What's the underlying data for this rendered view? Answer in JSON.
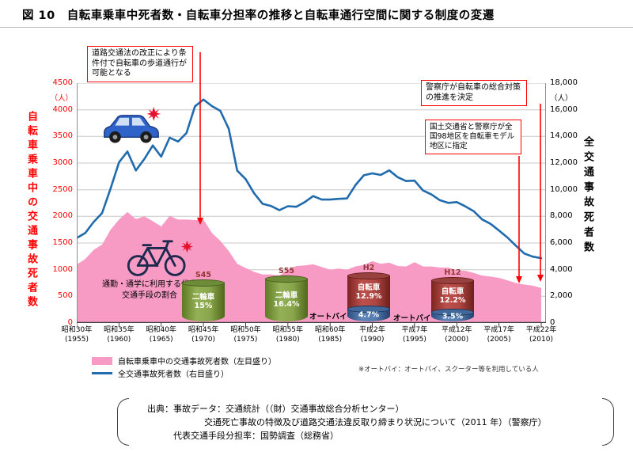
{
  "title": "図 10　自転車乗車中死者数・自転車分担率の推移と自転車通行空間に関する制度の変遷",
  "left_axis": {
    "title": "自転車乗車中の交通事故死者数",
    "unit": "（人）",
    "ticks": [
      "4500",
      "4000",
      "3500",
      "3000",
      "2500",
      "2000",
      "1500",
      "1000",
      "500",
      "0"
    ]
  },
  "right_axis": {
    "title": "全交通事故死者数",
    "unit": "（人）",
    "ticks": [
      "18,000",
      "16,000",
      "14,000",
      "12,000",
      "10,000",
      "8,000",
      "6,000",
      "4,000",
      "2,000",
      "0"
    ]
  },
  "x_axis": {
    "labels": [
      {
        "era": "昭和30年",
        "year": "(1955)"
      },
      {
        "era": "昭和35年",
        "year": "(1960)"
      },
      {
        "era": "昭和40年",
        "year": "(1965)"
      },
      {
        "era": "昭和45年",
        "year": "(1970)"
      },
      {
        "era": "昭和50年",
        "year": "(1975)"
      },
      {
        "era": "昭和55年",
        "year": "(1980)"
      },
      {
        "era": "昭和60年",
        "year": "(1985)"
      },
      {
        "era": "平成2年",
        "year": "(1990)"
      },
      {
        "era": "平成7年",
        "year": "(1995)"
      },
      {
        "era": "平成12年",
        "year": "(2000)"
      },
      {
        "era": "平成17年",
        "year": "(2005)"
      },
      {
        "era": "平成22年",
        "year": "(2010)"
      }
    ]
  },
  "annotations": [
    {
      "text": "道路交通法の改正により条件付で自転車の歩道通行が可能となる"
    },
    {
      "text": "警察庁が自転車の総合対策の推進を決定"
    },
    {
      "text": "国土交通省と警察庁が全国98地区を自転車モデル地区に指定"
    }
  ],
  "area_label": "通勤・通学に利用する代表交通手段の割合",
  "cylinders": [
    {
      "label": "S45",
      "segments": [
        {
          "name": "二輪車",
          "value": "15%",
          "color": "green"
        }
      ]
    },
    {
      "label": "S55",
      "segments": [
        {
          "name": "二輪車",
          "value": "16.4%",
          "color": "green"
        }
      ]
    },
    {
      "label": "H2",
      "side_label": "オートバイ",
      "segments": [
        {
          "name": "自転車",
          "value": "12.9%",
          "color": "red"
        },
        {
          "name": "",
          "value": "4.7%",
          "color": "blue"
        }
      ]
    },
    {
      "label": "H12",
      "side_label": "オートバイ",
      "segments": [
        {
          "name": "自転車",
          "value": "12.2%",
          "color": "red"
        },
        {
          "name": "",
          "value": "3.5%",
          "color": "blue"
        }
      ]
    }
  ],
  "legend": {
    "items": [
      {
        "type": "area",
        "label": "自転車乗車中の交通事故死者数（左目盛り）"
      },
      {
        "type": "line",
        "label": "全交通事故死者数（右目盛り）"
      }
    ]
  },
  "note": "※オートバイ：オートバイ、スクーター等を利用している人",
  "source": {
    "lines": [
      "出典：事故データ：交通統計（（財）交通事故総合分析センター）",
      "交通死亡事故の特徴及び道路交通法違反取り締まり状況について（2011 年）（警察庁）",
      "代表交通手段分担率：国勢調査（総務省）"
    ]
  },
  "colors": {
    "area_pink": "#F79BC5",
    "line_blue": "#1F6BAD",
    "annotation_red": "#FF0000",
    "left_axis_red": "#FF0000"
  },
  "chart_data": {
    "type": "area",
    "title": "自転車乗車中死者数・自転車分担率の推移",
    "x_years": [
      1955,
      1956,
      1957,
      1958,
      1959,
      1960,
      1961,
      1962,
      1963,
      1964,
      1965,
      1966,
      1967,
      1968,
      1969,
      1970,
      1971,
      1972,
      1973,
      1974,
      1975,
      1976,
      1977,
      1978,
      1979,
      1980,
      1981,
      1982,
      1983,
      1984,
      1985,
      1986,
      1987,
      1988,
      1989,
      1990,
      1991,
      1992,
      1993,
      1994,
      1995,
      1996,
      1997,
      1998,
      1999,
      2000,
      2001,
      2002,
      2003,
      2004,
      2005,
      2006,
      2007,
      2008,
      2009,
      2010
    ],
    "x_tick_years": [
      1955,
      1960,
      1965,
      1970,
      1975,
      1980,
      1985,
      1990,
      1995,
      2000,
      2005,
      2010
    ],
    "series": [
      {
        "name": "自転車乗車中の交通事故死者数",
        "type": "area",
        "axis": "left",
        "color": "#F79BC5",
        "values": [
          1095,
          1200,
          1370,
          1470,
          1750,
          1940,
          2080,
          1950,
          2000,
          1910,
          1810,
          2010,
          1940,
          1940,
          1930,
          1940,
          1690,
          1540,
          1350,
          1110,
          1030,
          960,
          910,
          910,
          890,
          1000,
          1070,
          1080,
          1100,
          1050,
          1000,
          1020,
          1000,
          1060,
          1090,
          1160,
          1110,
          1130,
          1070,
          1060,
          1140,
          1060,
          1060,
          1040,
          1040,
          985,
          980,
          940,
          890,
          870,
          846,
          800,
          750,
          720,
          700,
          658
        ]
      },
      {
        "name": "全交通事故死者数",
        "type": "line",
        "axis": "right",
        "color": "#1F6BAD",
        "values": [
          6379,
          6751,
          7575,
          8248,
          10079,
          12055,
          12865,
          11445,
          12301,
          13318,
          12484,
          13904,
          13618,
          14256,
          16257,
          16765,
          16278,
          15918,
          14574,
          11432,
          10792,
          9734,
          8945,
          8783,
          8466,
          8760,
          8719,
          9073,
          9520,
          9262,
          9261,
          9317,
          9347,
          10344,
          11086,
          11227,
          11109,
          11452,
          10945,
          10653,
          10684,
          9943,
          9642,
          9214,
          9012,
          9073,
          8757,
          8396,
          7768,
          7436,
          6937,
          6415,
          5796,
          5209,
          4979,
          4863
        ]
      }
    ],
    "left_ylim": [
      0,
      4500
    ],
    "right_ylim": [
      0,
      18000
    ],
    "grid": "horizontal",
    "legend_position": "bottom-left"
  }
}
